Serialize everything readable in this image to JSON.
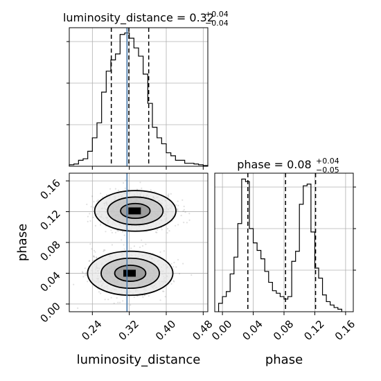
{
  "chart_data": {
    "type": "corner",
    "parameters": [
      "luminosity_distance",
      "phase"
    ],
    "truths": {
      "luminosity_distance": 0.315
    },
    "titles": {
      "luminosity_distance": {
        "prefix": "luminosity_distance = ",
        "value": "0.32",
        "plus": "+0.04",
        "minus": "−0.04"
      },
      "phase": {
        "prefix": "phase = ",
        "value": "0.08",
        "plus": "+0.04",
        "minus": "−0.05"
      }
    },
    "axis_labels": {
      "x_left": "luminosity_distance",
      "x_right": "phase",
      "y_left": "phase"
    },
    "ranges": {
      "luminosity_distance": [
        0.19,
        0.49
      ],
      "phase": [
        -0.01,
        0.17
      ]
    },
    "ticks": {
      "luminosity_distance": [
        0.24,
        0.32,
        0.4,
        0.48
      ],
      "luminosity_distance_labels": [
        "0.24",
        "0.32",
        "0.40",
        "0.48"
      ],
      "phase": [
        0.0,
        0.04,
        0.08,
        0.12,
        0.16
      ],
      "phase_labels": [
        "0.00",
        "0.04",
        "0.08",
        "0.12",
        "0.16"
      ]
    },
    "quantile_lines": {
      "luminosity_distance": [
        0.281,
        0.319,
        0.362
      ],
      "phase": [
        0.033,
        0.082,
        0.121
      ]
    },
    "hist_luminosity_distance": {
      "bin_edges": [
        0.19,
        0.2,
        0.21,
        0.22,
        0.23,
        0.24,
        0.25,
        0.26,
        0.27,
        0.28,
        0.29,
        0.3,
        0.31,
        0.32,
        0.33,
        0.34,
        0.35,
        0.36,
        0.37,
        0.38,
        0.39,
        0.4,
        0.41,
        0.42,
        0.43,
        0.44,
        0.45,
        0.46,
        0.47,
        0.48,
        0.49
      ],
      "counts": [
        2,
        3,
        8,
        10,
        20,
        38,
        58,
        99,
        127,
        142,
        150,
        176,
        178,
        171,
        158,
        147,
        123,
        84,
        52,
        38,
        30,
        18,
        14,
        8,
        8,
        4,
        4,
        3,
        2,
        1
      ],
      "ymax": 185
    },
    "hist_phase": {
      "bin_edges": [
        -0.005,
        0.0,
        0.005,
        0.01,
        0.015,
        0.02,
        0.025,
        0.03,
        0.035,
        0.04,
        0.045,
        0.05,
        0.055,
        0.06,
        0.065,
        0.07,
        0.075,
        0.08,
        0.085,
        0.09,
        0.095,
        0.1,
        0.105,
        0.11,
        0.115,
        0.12,
        0.125,
        0.13,
        0.135,
        0.14,
        0.145,
        0.15,
        0.155
      ],
      "counts": [
        10,
        18,
        24,
        45,
        65,
        105,
        158,
        155,
        99,
        82,
        73,
        63,
        48,
        35,
        25,
        22,
        18,
        15,
        18,
        60,
        72,
        128,
        150,
        152,
        95,
        52,
        40,
        20,
        12,
        8,
        5,
        3
      ],
      "ymax": 165
    },
    "scatter_2d": {
      "modes": [
        {
          "x_center": 0.333,
          "y_center": 0.121,
          "x_std": 0.04,
          "y_std": 0.012,
          "weight": 0.5
        },
        {
          "x_center": 0.322,
          "y_center": 0.04,
          "x_std": 0.042,
          "y_std": 0.013,
          "weight": 0.5
        }
      ],
      "contour_levels": 3
    }
  }
}
